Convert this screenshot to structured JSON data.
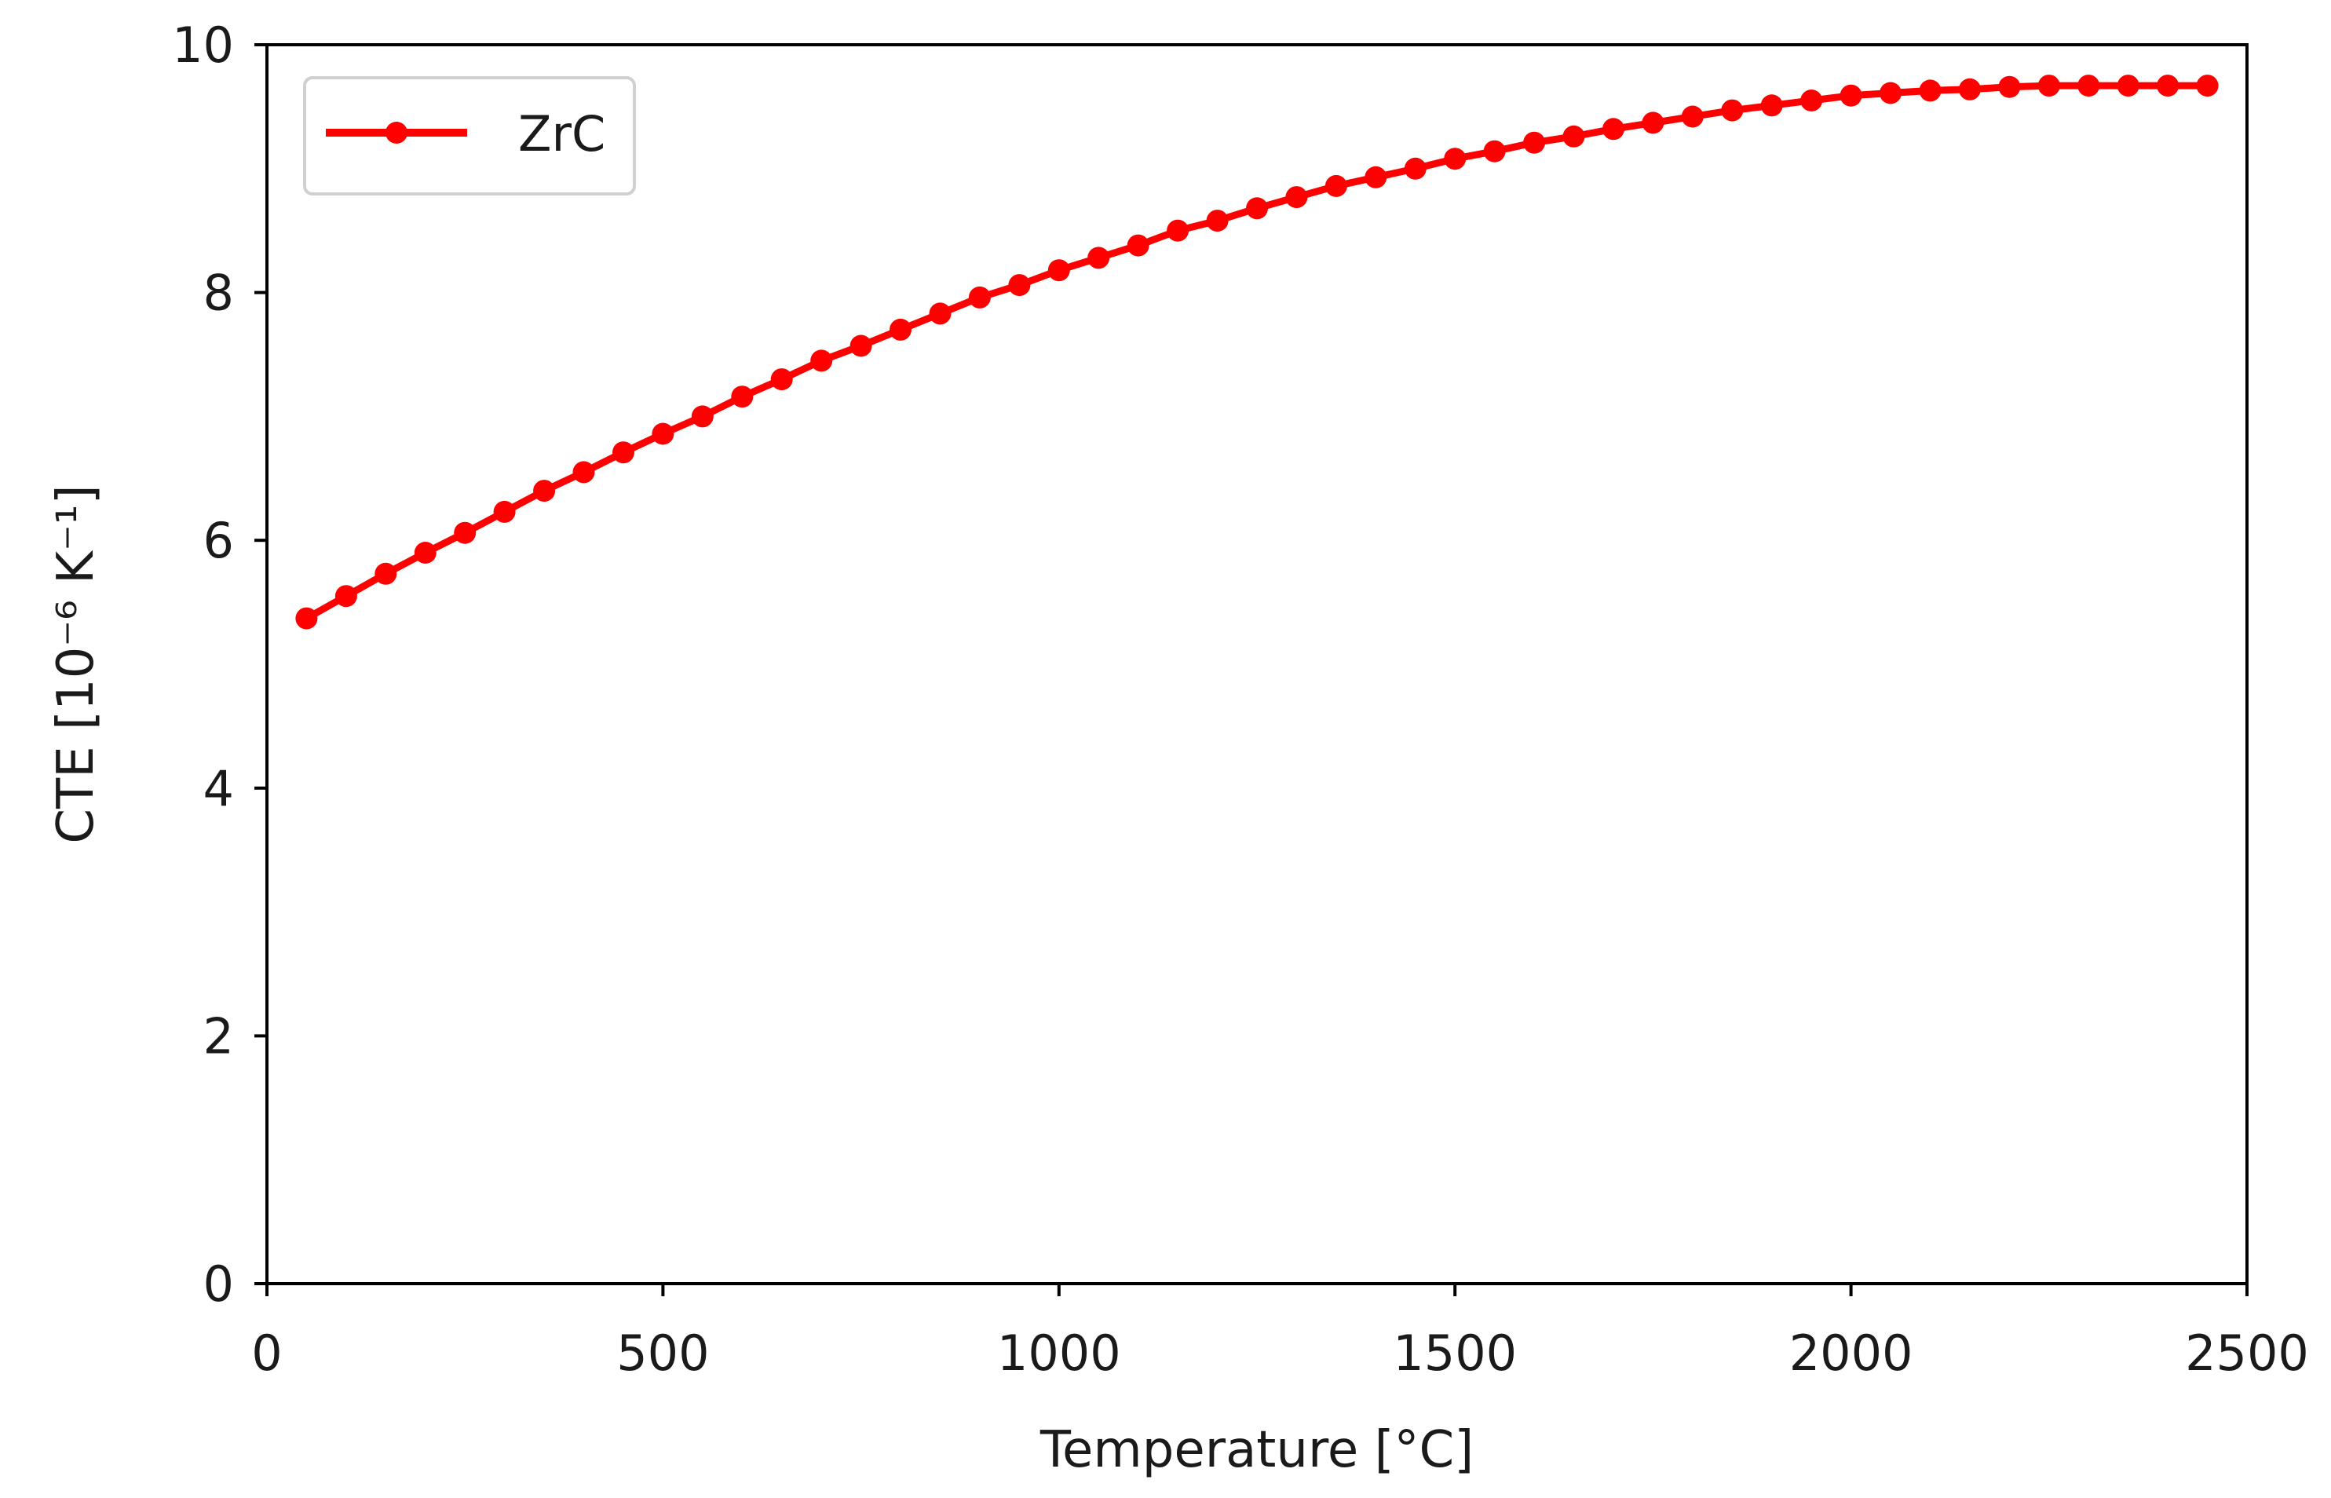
{
  "chart_data": {
    "type": "line",
    "title": "",
    "xlabel": "Temperature [°C]",
    "ylabel": "CTE [10⁻⁶ K⁻¹]",
    "xlim": [
      0,
      2500
    ],
    "ylim": [
      0,
      10
    ],
    "xticks": [
      0,
      500,
      1000,
      1500,
      2000,
      2500
    ],
    "yticks": [
      0,
      2,
      4,
      6,
      8,
      10
    ],
    "xtick_labels": [
      "0",
      "500",
      "1000",
      "1500",
      "2000",
      "2500"
    ],
    "ytick_labels": [
      "0",
      "2",
      "4",
      "6",
      "8",
      "10"
    ],
    "grid": false,
    "legend_position": "top-left",
    "series": [
      {
        "name": "ZrC",
        "color": "#ff0000",
        "marker": "circle",
        "x": [
          50,
          100,
          150,
          200,
          250,
          300,
          350,
          400,
          450,
          500,
          550,
          600,
          650,
          700,
          750,
          800,
          850,
          900,
          950,
          1000,
          1050,
          1100,
          1150,
          1200,
          1250,
          1300,
          1350,
          1400,
          1450,
          1500,
          1550,
          1600,
          1650,
          1700,
          1750,
          1800,
          1850,
          1900,
          1950,
          2000,
          2050,
          2100,
          2150,
          2200,
          2250,
          2300,
          2350,
          2400,
          2450
        ],
        "values": [
          5.37,
          5.55,
          5.73,
          5.9,
          6.06,
          6.23,
          6.4,
          6.55,
          6.71,
          6.86,
          7.0,
          7.16,
          7.3,
          7.45,
          7.57,
          7.7,
          7.83,
          7.96,
          8.06,
          8.18,
          8.28,
          8.38,
          8.5,
          8.58,
          8.68,
          8.77,
          8.86,
          8.93,
          9.0,
          9.08,
          9.14,
          9.21,
          9.26,
          9.32,
          9.37,
          9.42,
          9.47,
          9.51,
          9.55,
          9.59,
          9.61,
          9.63,
          9.64,
          9.66,
          9.67,
          9.67,
          9.67,
          9.67,
          9.67
        ]
      }
    ]
  }
}
